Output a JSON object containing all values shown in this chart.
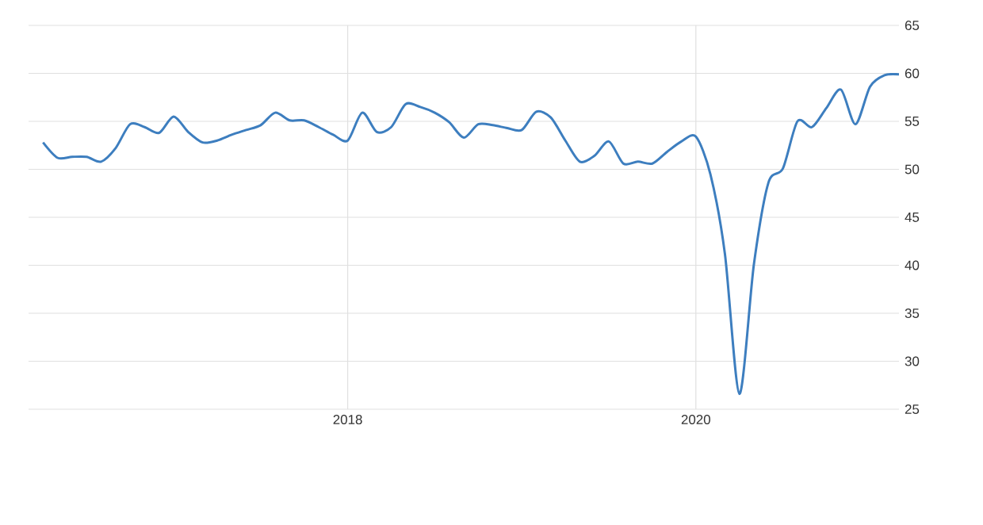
{
  "chart_data": {
    "type": "line",
    "x": [
      "2016-04",
      "2016-05",
      "2016-06",
      "2016-07",
      "2016-08",
      "2016-09",
      "2016-10",
      "2016-11",
      "2016-12",
      "2017-01",
      "2017-02",
      "2017-03",
      "2017-04",
      "2017-05",
      "2017-06",
      "2017-07",
      "2017-08",
      "2017-09",
      "2017-10",
      "2017-11",
      "2017-12",
      "2018-01",
      "2018-02",
      "2018-03",
      "2018-04",
      "2018-05",
      "2018-06",
      "2018-07",
      "2018-08",
      "2018-09",
      "2018-10",
      "2018-11",
      "2018-12",
      "2019-01",
      "2019-02",
      "2019-03",
      "2019-04",
      "2019-05",
      "2019-06",
      "2019-07",
      "2019-08",
      "2019-09",
      "2019-10",
      "2019-11",
      "2019-12",
      "2020-01",
      "2020-02",
      "2020-03",
      "2020-04",
      "2020-05",
      "2020-06",
      "2020-07",
      "2020-08",
      "2020-09",
      "2020-10",
      "2020-11",
      "2020-12",
      "2021-01",
      "2021-02",
      "2021-03"
    ],
    "series": [
      {
        "color": "#3d7ebf",
        "values": [
          52.8,
          51.2,
          51.3,
          51.3,
          50.8,
          52.2,
          54.7,
          54.4,
          53.8,
          55.5,
          53.9,
          52.8,
          53.0,
          53.6,
          54.1,
          54.6,
          55.9,
          55.1,
          55.1,
          54.4,
          53.6,
          53.0,
          55.9,
          53.9,
          54.4,
          56.8,
          56.5,
          55.9,
          54.9,
          53.3,
          54.7,
          54.6,
          54.3,
          54.1,
          56.0,
          55.4,
          53.0,
          50.8,
          51.4,
          52.9,
          50.6,
          50.8,
          50.6,
          51.8,
          52.9,
          53.4,
          49.5,
          41.2,
          26.6,
          40.1,
          48.6,
          50.1,
          55.0,
          54.4,
          56.4,
          58.3,
          54.7,
          58.6,
          59.8,
          59.9
        ]
      }
    ],
    "xlim": [
      "2016-03",
      "2021-03"
    ],
    "xticks": [
      "2018",
      "2020"
    ],
    "ylim": [
      25,
      65
    ],
    "yticks": [
      25,
      30,
      35,
      40,
      45,
      50,
      55,
      60,
      65
    ],
    "grid": true,
    "marker": "none",
    "line_style": "solid"
  }
}
